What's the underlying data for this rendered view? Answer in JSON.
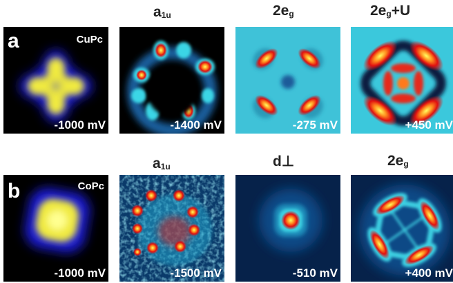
{
  "rows": [
    {
      "label": "a",
      "molecule": "CuPc",
      "panels": [
        {
          "header": "",
          "header_sub": "",
          "bias": "-1000 mV"
        },
        {
          "header": "a",
          "header_sub": "1u",
          "bias": "-1400 mV"
        },
        {
          "header": "2e",
          "header_sub": "g",
          "bias": "-275 mV"
        },
        {
          "header": "2e",
          "header_sub": "g",
          "header_suffix": "+U",
          "bias": "+450 mV"
        }
      ]
    },
    {
      "label": "b",
      "molecule": "CoPc",
      "panels": [
        {
          "header": "",
          "header_sub": "",
          "bias": "-1000 mV"
        },
        {
          "header": "a",
          "header_sub": "1u",
          "bias": "-1500 mV"
        },
        {
          "header": "d",
          "header_sub": "",
          "header_suffix": "⊥",
          "bias": "-510 mV"
        },
        {
          "header": "2e",
          "header_sub": "g",
          "bias": "+400 mV"
        }
      ]
    }
  ]
}
